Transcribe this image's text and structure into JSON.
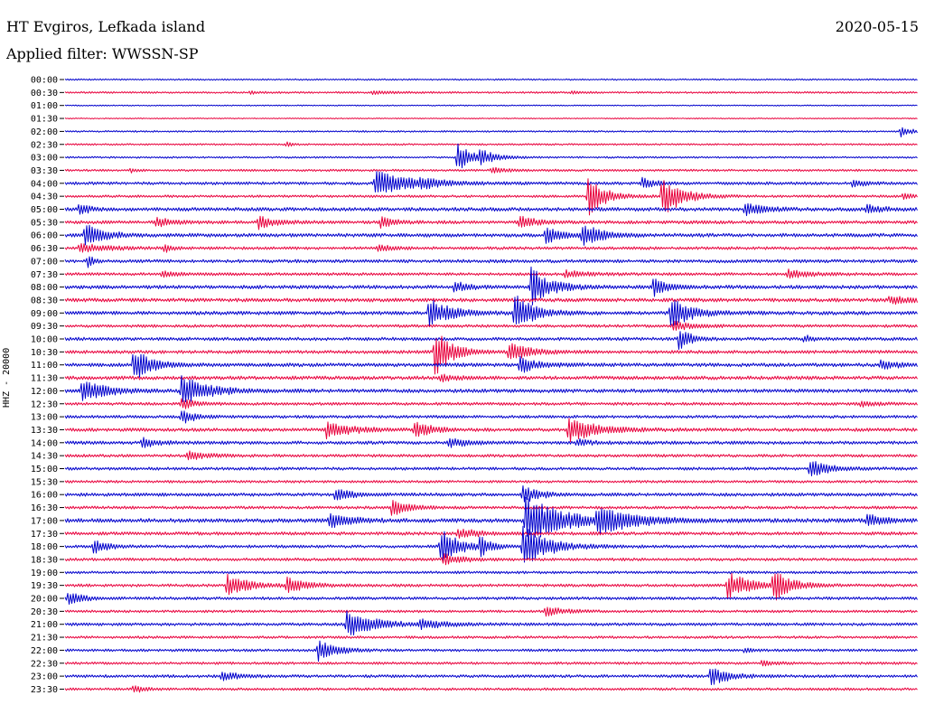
{
  "header": {
    "station": "HT Evgiros, Lefkada island",
    "date": "2020-05-15",
    "filter": "Applied filter: WWSSN-SP"
  },
  "chart_data": {
    "type": "line",
    "title": "HT Evgiros, Lefkada island",
    "date": "2020-05-15",
    "filter": "WWSSN-SP",
    "ylabel": "HHZ - 20000",
    "x_range_minutes": [
      0,
      30
    ],
    "row_labels": [
      "00:00",
      "00:30",
      "01:00",
      "01:30",
      "02:00",
      "02:30",
      "03:00",
      "03:30",
      "04:00",
      "04:30",
      "05:00",
      "05:30",
      "06:00",
      "06:30",
      "07:00",
      "07:30",
      "08:00",
      "08:30",
      "09:00",
      "09:30",
      "10:00",
      "10:30",
      "11:00",
      "11:30",
      "12:00",
      "12:30",
      "13:00",
      "13:30",
      "14:00",
      "14:30",
      "15:00",
      "15:30",
      "16:00",
      "16:30",
      "17:00",
      "17:30",
      "18:00",
      "18:30",
      "19:00",
      "19:30",
      "20:00",
      "20:30",
      "21:00",
      "21:30",
      "22:00",
      "22:30",
      "23:00",
      "23:30"
    ],
    "colors": [
      "#0000cc",
      "#e8003c"
    ],
    "noise_levels": [
      0.8,
      1.0,
      0.6,
      0.6,
      0.9,
      1.0,
      1.0,
      1.2,
      1.6,
      1.4,
      2.0,
      1.8,
      2.0,
      1.6,
      1.8,
      1.6,
      2.0,
      2.0,
      2.0,
      1.6,
      1.8,
      1.8,
      2.0,
      2.0,
      2.0,
      1.6,
      1.6,
      1.8,
      1.8,
      1.6,
      1.6,
      1.4,
      1.8,
      1.6,
      2.2,
      1.8,
      1.6,
      1.6,
      1.4,
      1.6,
      1.6,
      1.4,
      1.6,
      1.4,
      1.4,
      1.4,
      1.6,
      1.4
    ],
    "events": [
      {
        "row": 1,
        "t": 6.5,
        "amp": 1.5,
        "dur": 1.0
      },
      {
        "row": 1,
        "t": 10.8,
        "amp": 2.0,
        "dur": 1.6
      },
      {
        "row": 1,
        "t": 17.8,
        "amp": 1.5,
        "dur": 0.8
      },
      {
        "row": 4,
        "t": 29.4,
        "amp": 6,
        "dur": 0.8
      },
      {
        "row": 5,
        "t": 7.8,
        "amp": 4,
        "dur": 0.3
      },
      {
        "row": 6,
        "t": 13.8,
        "amp": 16,
        "dur": 1.0
      },
      {
        "row": 6,
        "t": 14.6,
        "amp": 7,
        "dur": 1.2
      },
      {
        "row": 7,
        "t": 2.3,
        "amp": 3,
        "dur": 0.3
      },
      {
        "row": 7,
        "t": 15.0,
        "amp": 3,
        "dur": 1.2
      },
      {
        "row": 8,
        "t": 10.9,
        "amp": 15,
        "dur": 2.6
      },
      {
        "row": 8,
        "t": 12.5,
        "amp": 4,
        "dur": 1.2
      },
      {
        "row": 8,
        "t": 20.3,
        "amp": 6,
        "dur": 1.0
      },
      {
        "row": 8,
        "t": 27.7,
        "amp": 4,
        "dur": 1.0
      },
      {
        "row": 9,
        "t": 18.4,
        "amp": 22,
        "dur": 1.2
      },
      {
        "row": 9,
        "t": 21.0,
        "amp": 24,
        "dur": 1.4
      },
      {
        "row": 9,
        "t": 29.5,
        "amp": 4,
        "dur": 0.8
      },
      {
        "row": 10,
        "t": 0.5,
        "amp": 8,
        "dur": 0.6
      },
      {
        "row": 10,
        "t": 23.9,
        "amp": 7,
        "dur": 1.4
      },
      {
        "row": 10,
        "t": 28.2,
        "amp": 5,
        "dur": 1.0
      },
      {
        "row": 11,
        "t": 3.2,
        "amp": 6,
        "dur": 1.0
      },
      {
        "row": 11,
        "t": 6.8,
        "amp": 7,
        "dur": 1.2
      },
      {
        "row": 11,
        "t": 11.1,
        "amp": 6,
        "dur": 1.0
      },
      {
        "row": 11,
        "t": 16.0,
        "amp": 7,
        "dur": 1.2
      },
      {
        "row": 12,
        "t": 0.7,
        "amp": 12,
        "dur": 1.4
      },
      {
        "row": 12,
        "t": 16.9,
        "amp": 9,
        "dur": 1.2
      },
      {
        "row": 12,
        "t": 18.2,
        "amp": 12,
        "dur": 1.4
      },
      {
        "row": 13,
        "t": 0.5,
        "amp": 5,
        "dur": 2.0
      },
      {
        "row": 13,
        "t": 3.5,
        "amp": 4,
        "dur": 0.6
      },
      {
        "row": 13,
        "t": 11.0,
        "amp": 4,
        "dur": 1.0
      },
      {
        "row": 14,
        "t": 0.8,
        "amp": 8,
        "dur": 0.4
      },
      {
        "row": 15,
        "t": 3.4,
        "amp": 4,
        "dur": 1.0
      },
      {
        "row": 15,
        "t": 17.6,
        "amp": 4,
        "dur": 1.5
      },
      {
        "row": 15,
        "t": 25.4,
        "amp": 5,
        "dur": 1.5
      },
      {
        "row": 16,
        "t": 13.7,
        "amp": 6,
        "dur": 1.0
      },
      {
        "row": 16,
        "t": 16.4,
        "amp": 22,
        "dur": 1.4
      },
      {
        "row": 16,
        "t": 20.7,
        "amp": 10,
        "dur": 1.0
      },
      {
        "row": 17,
        "t": 29.0,
        "amp": 4,
        "dur": 2.0
      },
      {
        "row": 18,
        "t": 12.8,
        "amp": 16,
        "dur": 1.6
      },
      {
        "row": 18,
        "t": 15.8,
        "amp": 22,
        "dur": 1.4
      },
      {
        "row": 18,
        "t": 21.3,
        "amp": 16,
        "dur": 1.6
      },
      {
        "row": 19,
        "t": 21.4,
        "amp": 6,
        "dur": 1.4
      },
      {
        "row": 20,
        "t": 21.6,
        "amp": 14,
        "dur": 0.8
      },
      {
        "row": 20,
        "t": 26.0,
        "amp": 4,
        "dur": 0.6
      },
      {
        "row": 21,
        "t": 13.0,
        "amp": 28,
        "dur": 1.2
      },
      {
        "row": 21,
        "t": 15.6,
        "amp": 12,
        "dur": 1.4
      },
      {
        "row": 22,
        "t": 2.4,
        "amp": 20,
        "dur": 1.2
      },
      {
        "row": 22,
        "t": 16.0,
        "amp": 10,
        "dur": 1.2
      },
      {
        "row": 22,
        "t": 28.7,
        "amp": 5,
        "dur": 1.2
      },
      {
        "row": 23,
        "t": 13.2,
        "amp": 4,
        "dur": 1.0
      },
      {
        "row": 24,
        "t": 0.6,
        "amp": 14,
        "dur": 1.6
      },
      {
        "row": 24,
        "t": 4.1,
        "amp": 16,
        "dur": 2.0
      },
      {
        "row": 25,
        "t": 4.1,
        "amp": 6,
        "dur": 1.0
      },
      {
        "row": 25,
        "t": 28.0,
        "amp": 3,
        "dur": 1.2
      },
      {
        "row": 26,
        "t": 4.1,
        "amp": 8,
        "dur": 1.0
      },
      {
        "row": 27,
        "t": 9.2,
        "amp": 9,
        "dur": 2.0
      },
      {
        "row": 27,
        "t": 12.3,
        "amp": 10,
        "dur": 1.2
      },
      {
        "row": 27,
        "t": 17.7,
        "amp": 14,
        "dur": 2.2
      },
      {
        "row": 28,
        "t": 2.7,
        "amp": 7,
        "dur": 1.0
      },
      {
        "row": 28,
        "t": 13.5,
        "amp": 5,
        "dur": 1.4
      },
      {
        "row": 28,
        "t": 18.0,
        "amp": 4,
        "dur": 1.0
      },
      {
        "row": 29,
        "t": 4.3,
        "amp": 5,
        "dur": 1.4
      },
      {
        "row": 30,
        "t": 26.2,
        "amp": 10,
        "dur": 1.4
      },
      {
        "row": 32,
        "t": 9.5,
        "amp": 7,
        "dur": 1.2
      },
      {
        "row": 32,
        "t": 16.1,
        "amp": 10,
        "dur": 1.2
      },
      {
        "row": 33,
        "t": 11.5,
        "amp": 10,
        "dur": 1.2
      },
      {
        "row": 34,
        "t": 9.3,
        "amp": 8,
        "dur": 1.6
      },
      {
        "row": 34,
        "t": 16.2,
        "amp": 26,
        "dur": 2.8
      },
      {
        "row": 34,
        "t": 18.7,
        "amp": 14,
        "dur": 2.6
      },
      {
        "row": 34,
        "t": 28.2,
        "amp": 7,
        "dur": 1.2
      },
      {
        "row": 35,
        "t": 13.8,
        "amp": 6,
        "dur": 1.4
      },
      {
        "row": 36,
        "t": 1.0,
        "amp": 8,
        "dur": 1.0
      },
      {
        "row": 36,
        "t": 13.2,
        "amp": 20,
        "dur": 1.4
      },
      {
        "row": 36,
        "t": 14.6,
        "amp": 10,
        "dur": 0.8
      },
      {
        "row": 36,
        "t": 16.1,
        "amp": 24,
        "dur": 1.8
      },
      {
        "row": 37,
        "t": 13.3,
        "amp": 6,
        "dur": 1.4
      },
      {
        "row": 39,
        "t": 5.7,
        "amp": 12,
        "dur": 1.6
      },
      {
        "row": 39,
        "t": 7.8,
        "amp": 8,
        "dur": 1.4
      },
      {
        "row": 39,
        "t": 23.3,
        "amp": 16,
        "dur": 1.6
      },
      {
        "row": 39,
        "t": 24.9,
        "amp": 20,
        "dur": 1.2
      },
      {
        "row": 40,
        "t": 0.1,
        "amp": 8,
        "dur": 1.0
      },
      {
        "row": 41,
        "t": 16.9,
        "amp": 5,
        "dur": 1.6
      },
      {
        "row": 42,
        "t": 9.9,
        "amp": 14,
        "dur": 2.2
      },
      {
        "row": 42,
        "t": 12.5,
        "amp": 5,
        "dur": 1.6
      },
      {
        "row": 44,
        "t": 8.9,
        "amp": 12,
        "dur": 1.4
      },
      {
        "row": 44,
        "t": 23.9,
        "amp": 3,
        "dur": 0.6
      },
      {
        "row": 45,
        "t": 24.5,
        "amp": 3,
        "dur": 0.8
      },
      {
        "row": 46,
        "t": 5.5,
        "amp": 5,
        "dur": 1.4
      },
      {
        "row": 46,
        "t": 22.7,
        "amp": 10,
        "dur": 1.4
      },
      {
        "row": 47,
        "t": 2.4,
        "amp": 4,
        "dur": 0.8
      }
    ]
  }
}
